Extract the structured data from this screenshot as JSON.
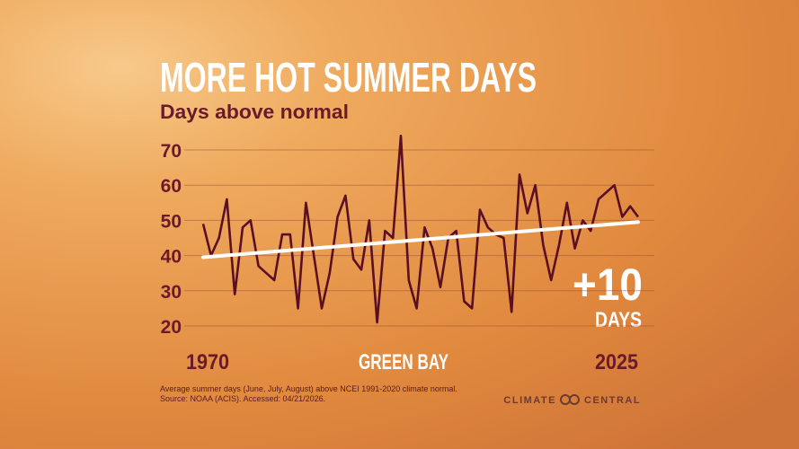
{
  "chart_data": {
    "type": "line",
    "title": "MORE HOT SUMMER DAYS",
    "subtitle": "Days above normal",
    "location": "GREEN BAY",
    "annotations": [
      "+10",
      "DAYS"
    ],
    "footnote": [
      "Average summer days (June, July, August) above NCEI 1991-2020 climate normal.",
      "Source: NOAA (ACIS). Accessed: 04/21/2026."
    ],
    "logo": [
      "CLIMATE",
      "CENTRAL"
    ],
    "x": [
      1970,
      1971,
      1972,
      1973,
      1974,
      1975,
      1976,
      1977,
      1978,
      1979,
      1980,
      1981,
      1982,
      1983,
      1984,
      1985,
      1986,
      1987,
      1988,
      1989,
      1990,
      1991,
      1992,
      1993,
      1994,
      1995,
      1996,
      1997,
      1998,
      1999,
      2000,
      2001,
      2002,
      2003,
      2004,
      2005,
      2006,
      2007,
      2008,
      2009,
      2010,
      2011,
      2012,
      2013,
      2014,
      2015,
      2016,
      2017,
      2018,
      2019,
      2020,
      2021,
      2022,
      2023,
      2024,
      2025
    ],
    "series": [
      {
        "color": "#5a0f23",
        "values": [
          49,
          40,
          45,
          56,
          29,
          48,
          50,
          37,
          35,
          33,
          46,
          46,
          25,
          55,
          40,
          25,
          35,
          51,
          57,
          39,
          36,
          50,
          21,
          47,
          45,
          74,
          33,
          25,
          48,
          42,
          31,
          45,
          47,
          27,
          25,
          53,
          48,
          46,
          45,
          24,
          63,
          52,
          60,
          43,
          33,
          43,
          55,
          42,
          50,
          47,
          56,
          58,
          60,
          51,
          54,
          51
        ]
      }
    ],
    "trend": {
      "color": "#ffffff",
      "x": [
        1970,
        2025
      ],
      "values": [
        39.5,
        49.5
      ]
    },
    "xlim": [
      1970,
      2025
    ],
    "xticks": [
      1970,
      2025
    ],
    "ylim": [
      18,
      75
    ],
    "yticks": [
      20,
      30,
      40,
      50,
      60,
      70
    ],
    "grid": true
  }
}
